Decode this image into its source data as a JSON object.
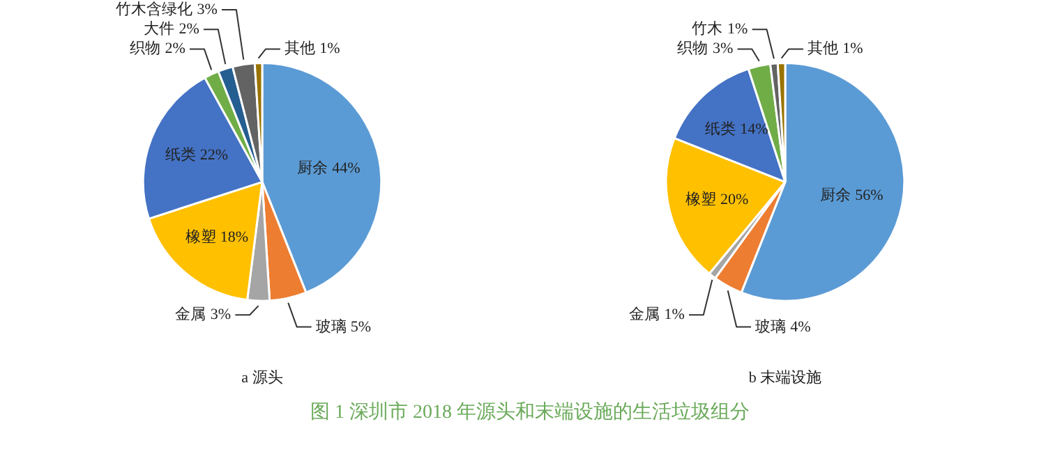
{
  "chart_data": [
    {
      "type": "pie",
      "categories": [
        "厨余",
        "玻璃",
        "金属",
        "橡塑",
        "纸类",
        "织物",
        "大件",
        "竹木含绿化",
        "其他"
      ],
      "values": [
        44,
        5,
        3,
        18,
        22,
        2,
        2,
        3,
        1
      ],
      "colors": [
        "#5b9bd5",
        "#ed7d31",
        "#a5a5a5",
        "#ffc000",
        "#4472c4",
        "#70ad47",
        "#255e91",
        "#636363",
        "#997300"
      ],
      "value_labels": [
        "44%",
        "5%",
        "3%",
        "18%",
        "22%",
        "2%",
        "2%",
        "3%",
        "1%"
      ],
      "legend": false,
      "annotations": [
        "a 源头",
        "图 1 深圳市 2018 年源头和末端设施的生活垃圾组分"
      ]
    },
    {
      "type": "pie",
      "categories": [
        "厨余",
        "玻璃",
        "金属",
        "橡塑",
        "纸类",
        "织物",
        "竹木",
        "其他"
      ],
      "values": [
        56,
        4,
        1,
        20,
        14,
        3,
        1,
        1
      ],
      "colors": [
        "#5b9bd5",
        "#ed7d31",
        "#a5a5a5",
        "#ffc000",
        "#4472c4",
        "#70ad47",
        "#636363",
        "#997300"
      ],
      "value_labels": [
        "56%",
        "4%",
        "1%",
        "20%",
        "14%",
        "3%",
        "1%",
        "1%"
      ],
      "legend": false,
      "annotations": [
        "b 末端设施"
      ]
    }
  ]
}
